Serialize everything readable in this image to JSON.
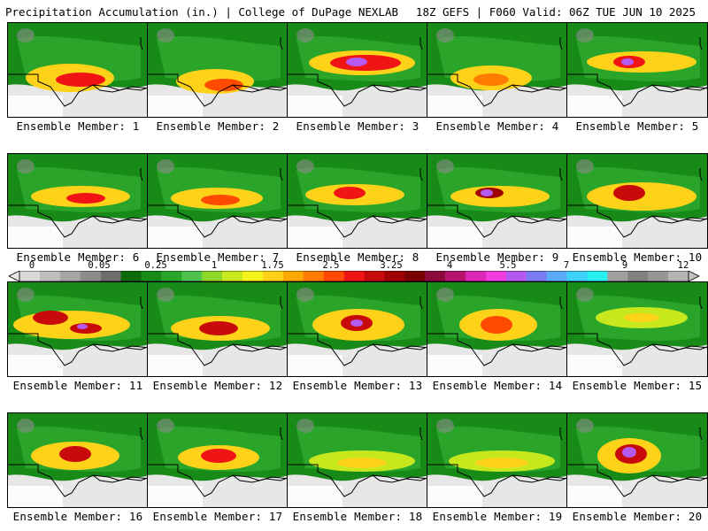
{
  "header": {
    "left_title": "Precipitation Accumulation (in.) | College of DuPage NEXLAB",
    "right_title": "18Z GEFS | F060 Valid: 06Z TUE JUN 10 2025"
  },
  "colorbar": {
    "labels": [
      "0",
      "0.05",
      "0.25",
      "1",
      "1.75",
      "2.5",
      "3.25",
      "4",
      "5.5",
      "7",
      "9",
      "12"
    ],
    "colors": [
      "#d8d8d8",
      "#bfbfbf",
      "#a6a6a6",
      "#8c8c8c",
      "#6e6e6e",
      "#0a6b0a",
      "#188a18",
      "#2aa52a",
      "#4cc24c",
      "#8fd62a",
      "#c8e81e",
      "#f4f41c",
      "#ffd21a",
      "#ffa800",
      "#ff7c00",
      "#ff4a00",
      "#f01414",
      "#c80a0a",
      "#a00000",
      "#7a0000",
      "#8c0a3c",
      "#b4146e",
      "#dc28b4",
      "#f03cdc",
      "#b45af0",
      "#7a7af4",
      "#5aaaf8",
      "#3cd2f8",
      "#28f0f0",
      "#a0a0a0",
      "#808080",
      "#969696",
      "#b4b4b4"
    ]
  },
  "members": [
    {
      "label": "Ensemble Member: 1"
    },
    {
      "label": "Ensemble Member: 2"
    },
    {
      "label": "Ensemble Member: 3"
    },
    {
      "label": "Ensemble Member: 4"
    },
    {
      "label": "Ensemble Member: 5"
    },
    {
      "label": "Ensemble Member: 6"
    },
    {
      "label": "Ensemble Member: 7"
    },
    {
      "label": "Ensemble Member: 8"
    },
    {
      "label": "Ensemble Member: 9"
    },
    {
      "label": "Ensemble Member: 10"
    },
    {
      "label": "Ensemble Member: 11"
    },
    {
      "label": "Ensemble Member: 12"
    },
    {
      "label": "Ensemble Member: 13"
    },
    {
      "label": "Ensemble Member: 14"
    },
    {
      "label": "Ensemble Member: 15"
    },
    {
      "label": "Ensemble Member: 16"
    },
    {
      "label": "Ensemble Member: 17"
    },
    {
      "label": "Ensemble Member: 18"
    },
    {
      "label": "Ensemble Member: 19"
    },
    {
      "label": "Ensemble Member: 20"
    }
  ]
}
